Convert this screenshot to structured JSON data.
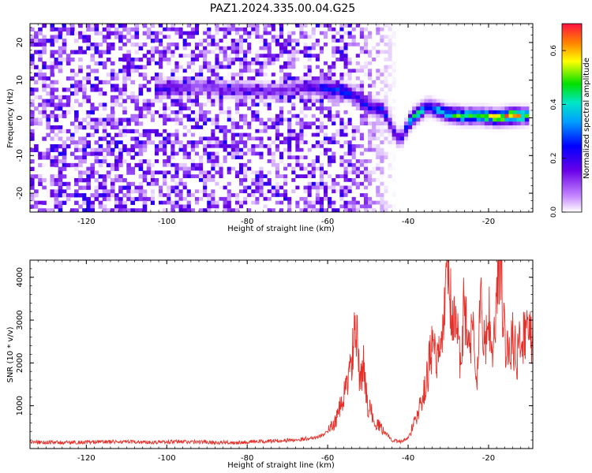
{
  "figure": {
    "title": "PAZ1.2024.335.00.04.G25"
  },
  "chart_data": [
    {
      "type": "heatmap",
      "xlabel": "Height of straight line (km)",
      "ylabel": "Frequency (Hz)",
      "xlim": [
        -134,
        -9
      ],
      "ylim": [
        -25,
        25
      ],
      "xticks": [
        -120,
        -100,
        -80,
        -60,
        -40,
        -20
      ],
      "yticks": [
        -20,
        -10,
        0,
        10,
        20
      ],
      "grid": false,
      "signal_ridge": [
        {
          "x": -103,
          "y": 7.5,
          "a": 0.22
        },
        {
          "x": -92,
          "y": 8.5,
          "a": 0.12
        },
        {
          "x": -86,
          "y": 7.5,
          "a": 0.16
        },
        {
          "x": -80,
          "y": 7.5,
          "a": 0.14
        },
        {
          "x": -73,
          "y": 7,
          "a": 0.14
        },
        {
          "x": -67,
          "y": 8,
          "a": 0.15
        },
        {
          "x": -63,
          "y": 8,
          "a": 0.22
        },
        {
          "x": -58,
          "y": 7.5,
          "a": 0.3
        },
        {
          "x": -54,
          "y": 6.5,
          "a": 0.24
        },
        {
          "x": -50,
          "y": 3,
          "a": 0.25
        },
        {
          "x": -46,
          "y": 2,
          "a": 0.3
        },
        {
          "x": -44,
          "y": -3,
          "a": 0.22
        },
        {
          "x": -42,
          "y": -6,
          "a": 0.2
        },
        {
          "x": -39,
          "y": 0,
          "a": 0.45
        },
        {
          "x": -35,
          "y": 3,
          "a": 0.28
        },
        {
          "x": -30,
          "y": 1,
          "a": 0.4
        },
        {
          "x": -26,
          "y": 0.5,
          "a": 0.45
        },
        {
          "x": -22,
          "y": 0.5,
          "a": 0.45
        },
        {
          "x": -18,
          "y": 0,
          "a": 0.52
        },
        {
          "x": -14,
          "y": 0.5,
          "a": 0.68
        },
        {
          "x": -10,
          "y": 0.5,
          "a": 0.4
        }
      ],
      "noise_region_x": [
        -134,
        -55
      ],
      "colorbar": {
        "label": "Normalized spectral amplitude",
        "range": [
          0,
          0.7
        ],
        "ticks": [
          0.0,
          0.2,
          0.4,
          0.6
        ]
      }
    },
    {
      "type": "line",
      "xlabel": "Height of straight line (km)",
      "ylabel": "SNR (10 * v/v)",
      "xlim": [
        -134,
        -9
      ],
      "ylim": [
        0,
        4400
      ],
      "xticks": [
        -120,
        -100,
        -80,
        -60,
        -40,
        -20
      ],
      "yticks": [
        1000,
        2000,
        3000,
        4000
      ],
      "grid": false,
      "series": [
        {
          "color": "#e8302a",
          "x": [
            -134,
            -125,
            -115,
            -105,
            -95,
            -85,
            -75,
            -68,
            -62,
            -60,
            -58,
            -56,
            -54,
            -53,
            -52,
            -51,
            -50,
            -48,
            -46,
            -44,
            -42,
            -40,
            -38,
            -36,
            -34,
            -32,
            -31,
            -30,
            -29,
            -28,
            -27,
            -26,
            -25,
            -24,
            -23,
            -22,
            -21,
            -20,
            -19,
            -18,
            -17,
            -16,
            -15,
            -14,
            -13,
            -12,
            -11,
            -10,
            -9
          ],
          "y": [
            150,
            140,
            160,
            150,
            160,
            140,
            170,
            200,
            280,
            400,
            650,
            1200,
            2050,
            2950,
            1500,
            1950,
            1000,
            600,
            400,
            200,
            150,
            250,
            700,
            1300,
            2400,
            2000,
            3200,
            4250,
            2700,
            3100,
            1800,
            3600,
            2200,
            3000,
            1500,
            3400,
            2300,
            3200,
            2000,
            3400,
            4330,
            2600,
            2200,
            2700,
            2000,
            2600,
            2700,
            2750,
            2650
          ]
        }
      ]
    }
  ]
}
